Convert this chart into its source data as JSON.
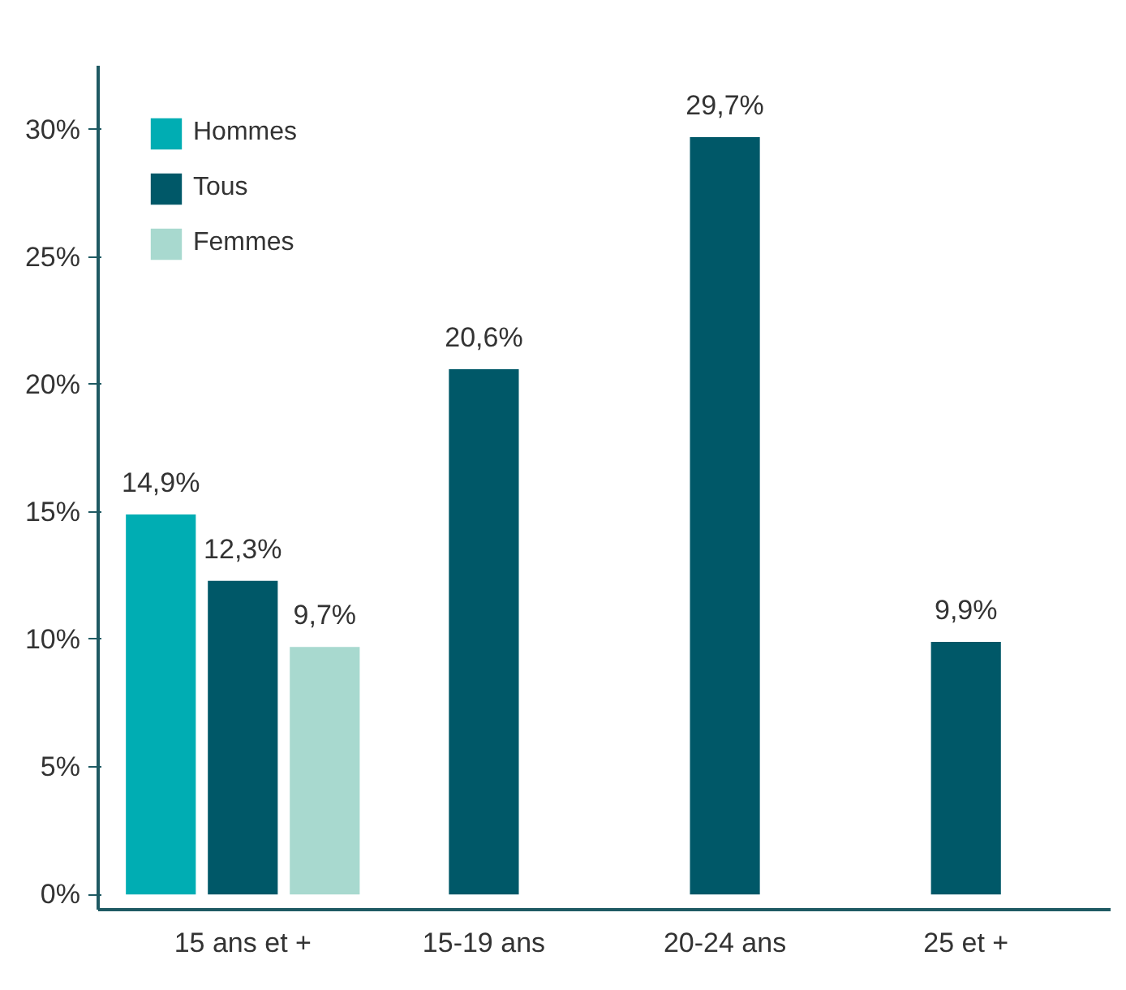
{
  "chart_data": {
    "type": "bar",
    "categories": [
      "15 ans et +",
      "15-19 ans",
      "20-24 ans",
      "25 et +"
    ],
    "series": [
      {
        "name": "Hommes",
        "color": "#00adb3",
        "values": [
          14.9,
          null,
          null,
          null
        ],
        "value_labels": [
          "14,9%",
          null,
          null,
          null
        ]
      },
      {
        "name": "Tous",
        "color": "#005868",
        "values": [
          12.3,
          20.6,
          29.7,
          9.9
        ],
        "value_labels": [
          "12,3%",
          "20,6%",
          "29,7%",
          "9,9%"
        ]
      },
      {
        "name": "Femmes",
        "color": "#a8d9cf",
        "values": [
          9.7,
          null,
          null,
          null
        ],
        "value_labels": [
          "9,7%",
          null,
          null,
          null
        ]
      }
    ],
    "ylim": [
      -0.6,
      32.5
    ],
    "yticks": [
      {
        "value": 0,
        "label": "0%"
      },
      {
        "value": 5,
        "label": "5%"
      },
      {
        "value": 10,
        "label": "10%"
      },
      {
        "value": 15,
        "label": "15%"
      },
      {
        "value": 20,
        "label": "20%"
      },
      {
        "value": 25,
        "label": "25%"
      },
      {
        "value": 30,
        "label": "30%"
      }
    ],
    "legend": "top left",
    "grid": false
  }
}
